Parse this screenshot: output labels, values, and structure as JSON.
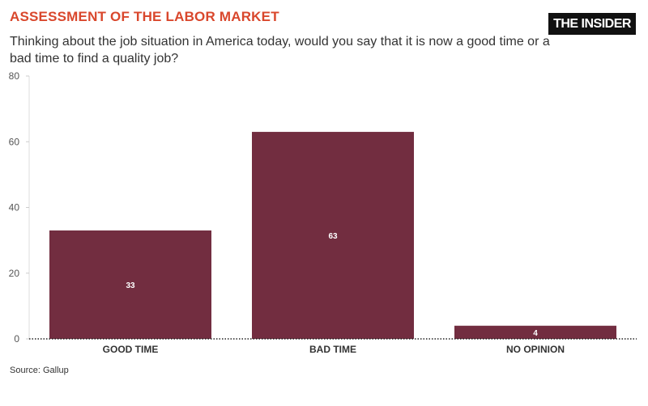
{
  "header": {
    "title": "ASSESSMENT OF THE LABOR MARKET",
    "subtitle": "Thinking about the job situation in America today, would you say that it is now a good time or a bad time to find a quality job?",
    "brand": "THE INSIDER"
  },
  "footer": {
    "source": "Source: Gallup"
  },
  "chart_data": {
    "type": "bar",
    "title": "ASSESSMENT OF THE LABOR MARKET",
    "subtitle": "Thinking about the job situation in America today, would you say that it is now a good time or a bad time to find a quality job?",
    "categories": [
      "GOOD TIME",
      "BAD TIME",
      "NO OPINION"
    ],
    "values": [
      33,
      63,
      4
    ],
    "data_labels": [
      "33",
      "63",
      "4"
    ],
    "ylim": [
      0,
      80
    ],
    "yticks": [
      0,
      20,
      40,
      60,
      80
    ],
    "grid": false,
    "bar_color": "#722d40",
    "xlabel": "",
    "ylabel": ""
  }
}
